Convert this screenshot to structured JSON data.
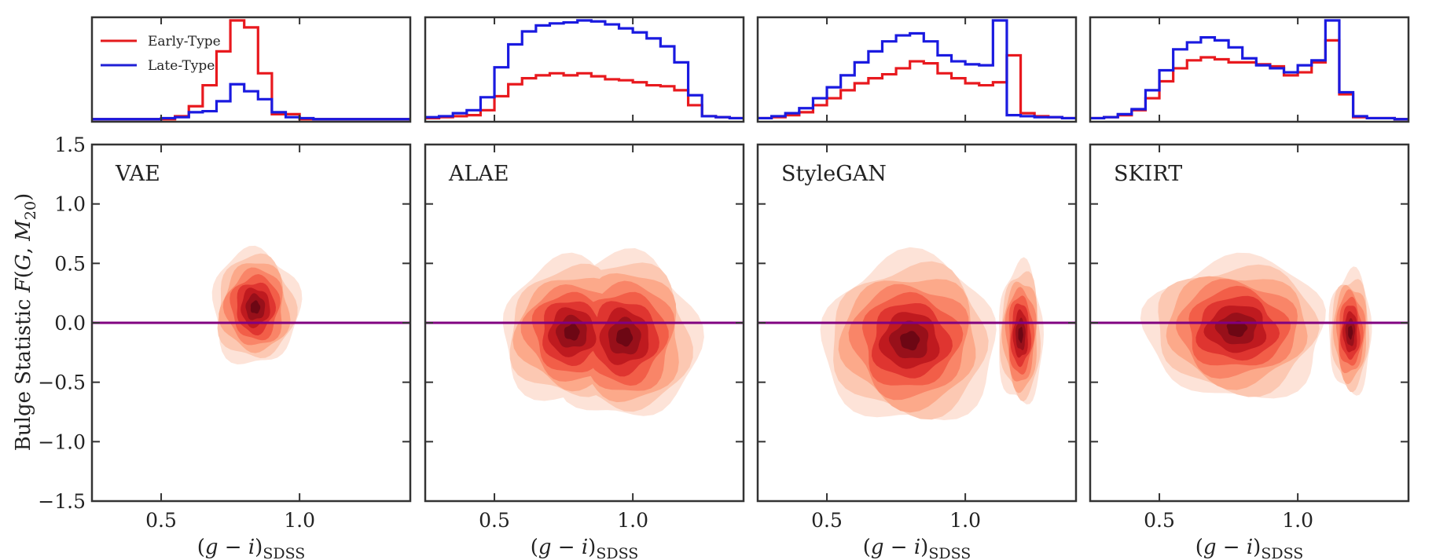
{
  "chart_data": {
    "type": "contour-density-with-histograms",
    "ylabel": "Bulge Statistic F(G, M20)",
    "ylabel_parts": {
      "main": "Bulge Statistic ",
      "func": "F",
      "open": "(",
      "g": "G",
      "sep": ", ",
      "m": "M",
      "sub": "20",
      "close": ")"
    },
    "xlabel_parts": {
      "open": "(",
      "g": "g",
      "minus": " − ",
      "i": "i",
      "close": ")",
      "sub": "SDSS"
    },
    "xlim": [
      0.25,
      1.4
    ],
    "ylim": [
      -1.5,
      1.5
    ],
    "x_ticks": [
      0.5,
      1.0
    ],
    "x_tick_labels": [
      "0.5",
      "1.0"
    ],
    "y_ticks": [
      -1.5,
      -1.0,
      -0.5,
      0.0,
      0.5,
      1.0,
      1.5
    ],
    "y_tick_labels": [
      "−1.5",
      "−1.0",
      "−0.5",
      "0.0",
      "0.5",
      "1.0",
      "1.5"
    ],
    "reference_line": {
      "y": 0.0,
      "color": "#800080"
    },
    "legend": [
      {
        "label": "Early-Type",
        "color": "#e41a1c"
      },
      {
        "label": "Late-Type",
        "color": "#1f1fd6"
      }
    ],
    "colors": {
      "early": "#e8191e",
      "late": "#1a1ae0",
      "contour_levels": [
        "#fde3d8",
        "#fcc8b2",
        "#fca98a",
        "#f98568",
        "#f25e48",
        "#df3530",
        "#bf1a1f",
        "#98101a",
        "#6d0714"
      ]
    },
    "hist_bins": [
      0.275,
      0.325,
      0.375,
      0.425,
      0.475,
      0.525,
      0.575,
      0.625,
      0.675,
      0.725,
      0.775,
      0.825,
      0.875,
      0.925,
      0.975,
      1.025,
      1.075,
      1.125,
      1.175,
      1.225,
      1.275,
      1.325,
      1.375
    ],
    "panels": [
      {
        "name": "VAE",
        "hist_max": 1.0,
        "early": [
          0.01,
          0.01,
          0.01,
          0.01,
          0.01,
          0.01,
          0.04,
          0.14,
          0.35,
          0.69,
          1.0,
          0.93,
          0.47,
          0.06,
          0.06,
          0.01,
          0.01,
          0.01,
          0.01,
          0.01,
          0.01,
          0.01,
          0.01
        ],
        "late": [
          0.01,
          0.01,
          0.01,
          0.01,
          0.01,
          0.02,
          0.03,
          0.08,
          0.09,
          0.19,
          0.36,
          0.29,
          0.21,
          0.08,
          0.03,
          0.02,
          0.01,
          0.01,
          0.01,
          0.01,
          0.01,
          0.01,
          0.01
        ],
        "blobs": [
          {
            "cx": 0.84,
            "cy": 0.13,
            "sx": 0.055,
            "sy": 0.17,
            "w": 1.0
          }
        ],
        "max_radius": 2.85
      },
      {
        "name": "ALAE",
        "hist_max": 1.0,
        "early": [
          0.02,
          0.03,
          0.04,
          0.05,
          0.1,
          0.24,
          0.36,
          0.42,
          0.45,
          0.47,
          0.45,
          0.47,
          0.44,
          0.41,
          0.4,
          0.38,
          0.35,
          0.34,
          0.3,
          0.15,
          0.04,
          0.03,
          0.02
        ],
        "late": [
          0.03,
          0.04,
          0.07,
          0.1,
          0.23,
          0.53,
          0.76,
          0.89,
          0.95,
          0.97,
          0.98,
          1.0,
          0.99,
          0.96,
          0.92,
          0.88,
          0.82,
          0.74,
          0.58,
          0.25,
          0.04,
          0.03,
          0.02
        ],
        "blobs": [
          {
            "cx": 0.78,
            "cy": -0.08,
            "sx": 0.1,
            "sy": 0.24,
            "w": 0.9
          },
          {
            "cx": 0.97,
            "cy": -0.12,
            "sx": 0.1,
            "sy": 0.26,
            "w": 1.0
          }
        ],
        "max_radius": 2.65
      },
      {
        "name": "StyleGAN",
        "hist_max": 1.0,
        "early": [
          0.02,
          0.03,
          0.05,
          0.08,
          0.15,
          0.22,
          0.3,
          0.37,
          0.42,
          0.46,
          0.52,
          0.59,
          0.57,
          0.47,
          0.42,
          0.37,
          0.35,
          0.38,
          0.65,
          0.07,
          0.04,
          0.03,
          0.02
        ],
        "late": [
          0.02,
          0.04,
          0.07,
          0.12,
          0.22,
          0.33,
          0.45,
          0.58,
          0.69,
          0.79,
          0.85,
          0.87,
          0.79,
          0.65,
          0.59,
          0.56,
          0.55,
          1.0,
          0.05,
          0.04,
          0.03,
          0.03,
          0.02
        ],
        "blobs": [
          {
            "cx": 0.8,
            "cy": -0.15,
            "sx": 0.12,
            "sy": 0.27,
            "w": 0.9
          },
          {
            "cx": 1.2,
            "cy": -0.1,
            "sx": 0.03,
            "sy": 0.22,
            "w": 0.95
          }
        ],
        "max_radius": 2.75
      },
      {
        "name": "SKIRT",
        "hist_max": 1.0,
        "early": [
          0.02,
          0.03,
          0.05,
          0.1,
          0.22,
          0.39,
          0.52,
          0.6,
          0.63,
          0.61,
          0.58,
          0.58,
          0.56,
          0.54,
          0.45,
          0.48,
          0.58,
          0.8,
          0.26,
          0.03,
          0.02,
          0.02,
          0.01
        ],
        "late": [
          0.02,
          0.03,
          0.06,
          0.11,
          0.3,
          0.5,
          0.71,
          0.78,
          0.83,
          0.8,
          0.73,
          0.62,
          0.55,
          0.52,
          0.48,
          0.55,
          0.6,
          1.0,
          0.28,
          0.04,
          0.02,
          0.02,
          0.01
        ],
        "blobs": [
          {
            "cx": 0.78,
            "cy": -0.05,
            "sx": 0.12,
            "sy": 0.22,
            "w": 1.0
          },
          {
            "cx": 1.19,
            "cy": -0.08,
            "sx": 0.03,
            "sy": 0.2,
            "w": 0.9
          }
        ],
        "max_radius": 2.7
      }
    ]
  }
}
